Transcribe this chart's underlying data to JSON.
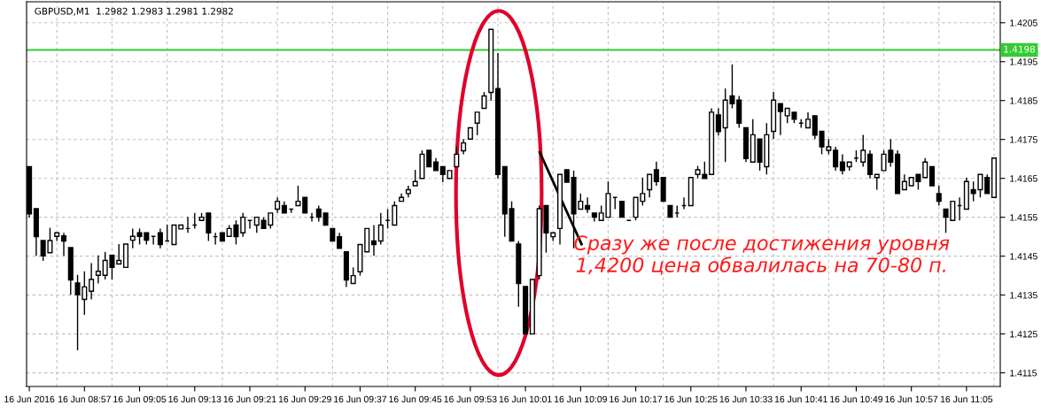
{
  "chart_data": {
    "type": "candlestick",
    "title": "GBPUSD,M1  1.2982 1.2983 1.2981 1.2982",
    "categories": [
      "16 Jun 2016",
      null,
      null,
      null,
      null,
      null,
      null,
      null,
      "16 Jun 08:57",
      null,
      null,
      null,
      null,
      null,
      null,
      null,
      "16 Jun 09:05",
      null,
      null,
      null,
      null,
      null,
      null,
      null,
      "16 Jun 09:13",
      null,
      null,
      null,
      null,
      null,
      null,
      null,
      "16 Jun 09:21",
      null,
      null,
      null,
      null,
      null,
      null,
      null,
      "16 Jun 09:29",
      null,
      null,
      null,
      null,
      null,
      null,
      null,
      "16 Jun 09:37",
      null,
      null,
      null,
      null,
      null,
      null,
      null,
      "16 Jun 09:45",
      null,
      null,
      null,
      null,
      null,
      null,
      null,
      "16 Jun 09:53",
      null,
      null,
      null,
      null,
      null,
      null,
      null,
      "16 Jun 10:01",
      null,
      null,
      null,
      null,
      null,
      null,
      null,
      "16 Jun 10:09",
      null,
      null,
      null,
      null,
      null,
      null,
      null,
      "16 Jun 10:17",
      null,
      null,
      null,
      null,
      null,
      null,
      null,
      "16 Jun 10:25",
      null,
      null,
      null,
      null,
      null,
      null,
      null,
      "16 Jun 10:33",
      null,
      null,
      null,
      null,
      null,
      null,
      null,
      "16 Jun 10:41",
      null,
      null,
      null,
      null,
      null,
      null,
      null,
      "16 Jun 10:49",
      null,
      null,
      null,
      null,
      null,
      null,
      null,
      "16 Jun 10:57",
      null,
      null,
      null,
      null,
      null,
      null,
      null,
      "16 Jun 11:05",
      null,
      null,
      null,
      null
    ],
    "color": "#000000",
    "ohlc": [
      [
        1.4168,
        1.4168,
        1.41549,
        1.41559
      ],
      [
        1.41572,
        1.41572,
        1.41451,
        1.415
      ],
      [
        1.4149,
        1.4149,
        1.41438,
        1.41451
      ],
      [
        1.41459,
        1.41523,
        1.41459,
        1.4149
      ],
      [
        1.41501,
        1.4151,
        1.41489,
        1.4151
      ],
      [
        1.41502,
        1.4151,
        1.41451,
        1.41489
      ],
      [
        1.41472,
        1.41472,
        1.41351,
        1.41389
      ],
      [
        1.41381,
        1.41402,
        1.41208,
        1.41351
      ],
      [
        1.41339,
        1.41411,
        1.41299,
        1.41371
      ],
      [
        1.4136,
        1.41432,
        1.41339,
        1.4139
      ],
      [
        1.41401,
        1.41452,
        1.4138,
        1.41411
      ],
      [
        1.41401,
        1.41461,
        1.4139,
        1.41439
      ],
      [
        1.41452,
        1.41452,
        1.4139,
        1.41421
      ],
      [
        1.4143,
        1.41481,
        1.4143,
        1.41439
      ],
      [
        1.41421,
        1.41481,
        1.41421,
        1.41481
      ],
      [
        1.41491,
        1.41521,
        1.4147,
        1.41501
      ],
      [
        1.4151,
        1.41521,
        1.4148,
        1.41501
      ],
      [
        1.4151,
        1.4151,
        1.4148,
        1.41491
      ],
      [
        1.41501,
        1.41501,
        1.4148,
        1.41501
      ],
      [
        1.4151,
        1.41521,
        1.4147,
        1.4148
      ],
      [
        1.41489,
        1.41531,
        1.41489,
        1.41489
      ],
      [
        1.4148,
        1.4153,
        1.4148,
        1.4153
      ],
      [
        1.4152,
        1.4153,
        1.4152,
        1.4153
      ],
      [
        1.41521,
        1.41551,
        1.4151,
        1.41521
      ],
      [
        1.4153,
        1.41561,
        1.41521,
        1.4153
      ],
      [
        1.41542,
        1.41561,
        1.41542,
        1.4155
      ],
      [
        1.41561,
        1.41561,
        1.41489,
        1.4151
      ],
      [
        1.415,
        1.4151,
        1.4148,
        1.415
      ],
      [
        1.4151,
        1.4151,
        1.41489,
        1.41489
      ],
      [
        1.41501,
        1.4153,
        1.41501,
        1.41521
      ],
      [
        1.4153,
        1.41542,
        1.4148,
        1.415
      ],
      [
        1.4151,
        1.41561,
        1.415,
        1.4155
      ],
      [
        1.41542,
        1.41542,
        1.41521,
        1.41542
      ],
      [
        1.4153,
        1.4155,
        1.4151,
        1.4155
      ],
      [
        1.41542,
        1.4155,
        1.41521,
        1.41521
      ],
      [
        1.4153,
        1.41561,
        1.41521,
        1.41561
      ],
      [
        1.41571,
        1.41601,
        1.41561,
        1.41591
      ],
      [
        1.4158,
        1.41591,
        1.41561,
        1.41561
      ],
      [
        1.41571,
        1.41571,
        1.41561,
        1.41571
      ],
      [
        1.4158,
        1.41631,
        1.4158,
        1.41591
      ],
      [
        1.41601,
        1.41601,
        1.41561,
        1.41561
      ],
      [
        1.4155,
        1.41561,
        1.41539,
        1.4155
      ],
      [
        1.41571,
        1.4158,
        1.41539,
        1.4155
      ],
      [
        1.41561,
        1.41561,
        1.4153,
        1.4153
      ],
      [
        1.41521,
        1.41521,
        1.41489,
        1.41489
      ],
      [
        1.415,
        1.4151,
        1.4147,
        1.4147
      ],
      [
        1.41461,
        1.41461,
        1.41371,
        1.41389
      ],
      [
        1.4138,
        1.41421,
        1.4138,
        1.414
      ],
      [
        1.4141,
        1.4148,
        1.414,
        1.4148
      ],
      [
        1.41461,
        1.41521,
        1.41461,
        1.41521
      ],
      [
        1.41489,
        1.4153,
        1.41451,
        1.4148
      ],
      [
        1.41489,
        1.41561,
        1.4148,
        1.4153
      ],
      [
        1.41542,
        1.41571,
        1.41521,
        1.41542
      ],
      [
        1.4153,
        1.41591,
        1.4153,
        1.4158
      ],
      [
        1.41591,
        1.41611,
        1.41591,
        1.41601
      ],
      [
        1.41611,
        1.41631,
        1.41601,
        1.41621
      ],
      [
        1.41631,
        1.41672,
        1.41631,
        1.41642
      ],
      [
        1.4165,
        1.41722,
        1.4165,
        1.41712
      ],
      [
        1.41722,
        1.41722,
        1.4168,
        1.4168
      ],
      [
        1.41692,
        1.41702,
        1.4167,
        1.4167
      ],
      [
        1.4168,
        1.4168,
        1.4164,
        1.4166
      ],
      [
        1.4165,
        1.4167,
        1.4165,
        1.4167
      ],
      [
        1.4168,
        1.41732,
        1.4168,
        1.41712
      ],
      [
        1.41721,
        1.41751,
        1.41712,
        1.41741
      ],
      [
        1.41751,
        1.4178,
        1.41751,
        1.4178
      ],
      [
        1.41792,
        1.4182,
        1.41761,
        1.4182
      ],
      [
        1.4183,
        1.41872,
        1.4183,
        1.41862
      ],
      [
        1.41871,
        1.42033,
        1.4185,
        1.42033
      ],
      [
        1.41881,
        1.41972,
        1.4165,
        1.4166
      ],
      [
        1.4168,
        1.4168,
        1.415,
        1.41559
      ],
      [
        1.41572,
        1.41591,
        1.41489,
        1.41489
      ],
      [
        1.41481,
        1.41489,
        1.4132,
        1.4138
      ],
      [
        1.41372,
        1.41372,
        1.4125,
        1.4125
      ],
      [
        1.4125,
        1.4139,
        1.4125,
        1.4139
      ],
      [
        1.414,
        1.4158,
        1.4139,
        1.41572
      ],
      [
        1.4158,
        1.4158,
        1.41459,
        1.4151
      ],
      [
        1.415,
        1.4151,
        1.41489,
        1.4151
      ],
      [
        1.41521,
        1.4166,
        1.4148,
        1.4166
      ],
      [
        1.41672,
        1.41672,
        1.4164,
        1.4164
      ],
      [
        1.41652,
        1.4167,
        1.4147,
        1.41559
      ],
      [
        1.41571,
        1.41611,
        1.41571,
        1.41591
      ],
      [
        1.4158,
        1.41601,
        1.41561,
        1.41571
      ],
      [
        1.41561,
        1.41561,
        1.41539,
        1.4155
      ],
      [
        1.41542,
        1.4158,
        1.41542,
        1.41561
      ],
      [
        1.4155,
        1.41642,
        1.4155,
        1.41611
      ],
      [
        1.41601,
        1.41601,
        1.41571,
        1.41601
      ],
      [
        1.41591,
        1.41591,
        1.4155,
        1.4155
      ],
      [
        1.41542,
        1.41542,
        1.41542,
        1.41542
      ],
      [
        1.4155,
        1.41601,
        1.41542,
        1.41601
      ],
      [
        1.41591,
        1.41652,
        1.4158,
        1.41611
      ],
      [
        1.41621,
        1.4166,
        1.41601,
        1.4166
      ],
      [
        1.41672,
        1.41693,
        1.41631,
        1.41642
      ],
      [
        1.41652,
        1.41652,
        1.41591,
        1.41591
      ],
      [
        1.4158,
        1.4158,
        1.4155,
        1.4155
      ],
      [
        1.41561,
        1.4158,
        1.4155,
        1.41561
      ],
      [
        1.4158,
        1.41601,
        1.41571,
        1.4158
      ],
      [
        1.4158,
        1.41652,
        1.4158,
        1.41652
      ],
      [
        1.4166,
        1.41682,
        1.4165,
        1.41672
      ],
      [
        1.4166,
        1.41693,
        1.4165,
        1.4165
      ],
      [
        1.4166,
        1.4183,
        1.4166,
        1.4182
      ],
      [
        1.41813,
        1.4183,
        1.4176,
        1.4177
      ],
      [
        1.4178,
        1.41881,
        1.41692,
        1.41851
      ],
      [
        1.41862,
        1.41943,
        1.4183,
        1.41842
      ],
      [
        1.41851,
        1.41862,
        1.4178,
        1.41792
      ],
      [
        1.4178,
        1.4178,
        1.41692,
        1.41701
      ],
      [
        1.41692,
        1.41802,
        1.41692,
        1.41762
      ],
      [
        1.41751,
        1.41751,
        1.4167,
        1.41692
      ],
      [
        1.4168,
        1.41792,
        1.4166,
        1.41762
      ],
      [
        1.41771,
        1.41872,
        1.41751,
        1.41851
      ],
      [
        1.41842,
        1.41842,
        1.41761,
        1.41822
      ],
      [
        1.41811,
        1.4183,
        1.41792,
        1.4183
      ],
      [
        1.4182,
        1.4182,
        1.41792,
        1.41802
      ],
      [
        1.41792,
        1.41802,
        1.4178,
        1.41792
      ],
      [
        1.4178,
        1.4182,
        1.4178,
        1.41802
      ],
      [
        1.41811,
        1.41811,
        1.41751,
        1.41761
      ],
      [
        1.41771,
        1.41771,
        1.41712,
        1.41731
      ],
      [
        1.41722,
        1.41751,
        1.41712,
        1.41731
      ],
      [
        1.41722,
        1.41731,
        1.4167,
        1.4168
      ],
      [
        1.41692,
        1.41712,
        1.4166,
        1.4167
      ],
      [
        1.4168,
        1.41692,
        1.4167,
        1.41692
      ],
      [
        1.41702,
        1.41722,
        1.41692,
        1.41702
      ],
      [
        1.41692,
        1.41762,
        1.4168,
        1.41722
      ],
      [
        1.41712,
        1.41722,
        1.4165,
        1.4166
      ],
      [
        1.41652,
        1.4166,
        1.41621,
        1.4166
      ],
      [
        1.4167,
        1.41722,
        1.4167,
        1.41712
      ],
      [
        1.41722,
        1.41751,
        1.4168,
        1.41692
      ],
      [
        1.41712,
        1.41722,
        1.41611,
        1.41611
      ],
      [
        1.41621,
        1.4166,
        1.41621,
        1.41642
      ],
      [
        1.41631,
        1.41652,
        1.41631,
        1.41652
      ],
      [
        1.4166,
        1.4166,
        1.41621,
        1.41642
      ],
      [
        1.41652,
        1.41702,
        1.41652,
        1.41692
      ],
      [
        1.4168,
        1.4168,
        1.41631,
        1.41631
      ],
      [
        1.41611,
        1.41631,
        1.4158,
        1.41591
      ],
      [
        1.41571,
        1.41571,
        1.4151,
        1.4155
      ],
      [
        1.41542,
        1.41591,
        1.41542,
        1.41591
      ],
      [
        1.4158,
        1.41601,
        1.41542,
        1.4158
      ],
      [
        1.41571,
        1.41652,
        1.41571,
        1.41642
      ],
      [
        1.41621,
        1.41642,
        1.41591,
        1.41611
      ],
      [
        1.41621,
        1.4166,
        1.41601,
        1.4166
      ],
      [
        1.41652,
        1.4166,
        1.41611,
        1.41611
      ],
      [
        1.41601,
        1.41702,
        1.41601,
        1.41702
      ]
    ],
    "ylim": [
      1.41115,
      1.42104
    ],
    "yticks": [
      1.4115,
      1.4125,
      1.4135,
      1.4145,
      1.4155,
      1.4165,
      1.4175,
      1.4185,
      1.4195,
      1.4205
    ],
    "ref_lines": [
      {
        "axis": "y",
        "value": 1.4198,
        "label": "1.4198",
        "color": "#33cc33"
      }
    ],
    "annotations": [
      "Сразу же после достижения уровня\n1,4200 цена обвалилась на 70-80 п."
    ],
    "grid": true
  }
}
